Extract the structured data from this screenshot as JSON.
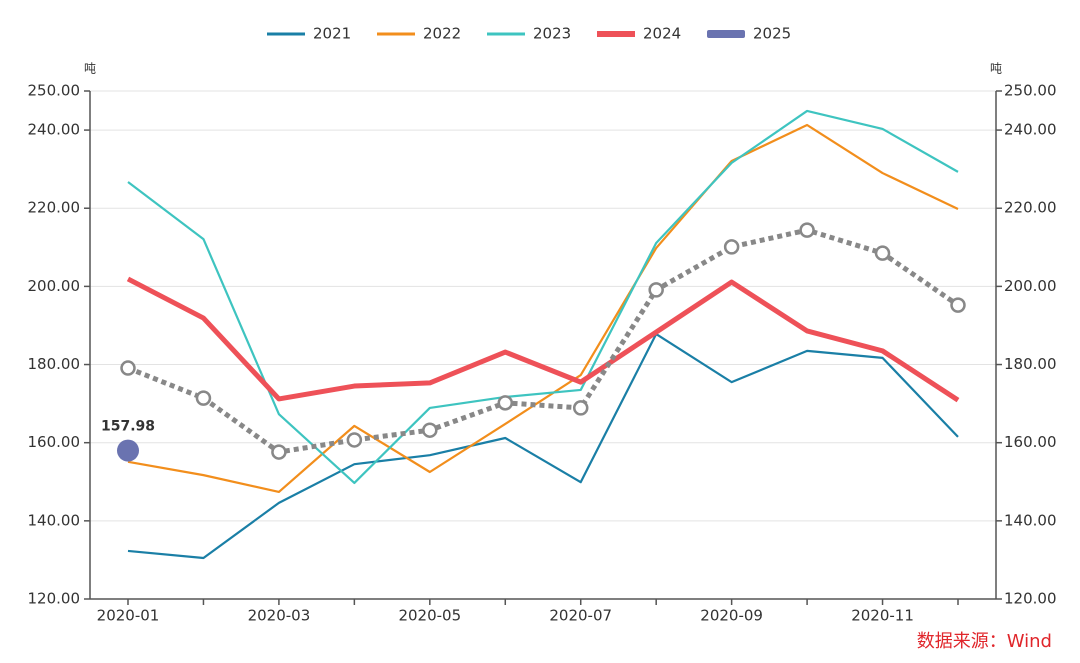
{
  "chart_data": {
    "type": "line",
    "categories": [
      "2020-01",
      null,
      "2020-03",
      null,
      "2020-05",
      null,
      "2020-07",
      null,
      "2020-09",
      null,
      "2020-11",
      null
    ],
    "series": [
      {
        "name": "2021",
        "color": "#1a7fa6",
        "values": [
          132.3,
          130.5,
          144.6,
          154.5,
          156.8,
          161.2,
          149.9,
          187.8,
          175.5,
          183.5,
          181.7,
          161.5
        ]
      },
      {
        "name": "2022",
        "color": "#f28e1c",
        "values": [
          155.1,
          151.7,
          147.4,
          164.3,
          152.5,
          164.8,
          177.3,
          209.8,
          232.1,
          241.3,
          229.0,
          219.8
        ]
      },
      {
        "name": "2023",
        "color": "#3ec4c0",
        "values": [
          226.7,
          212.1,
          167.3,
          149.7,
          168.9,
          171.7,
          173.5,
          211.1,
          231.6,
          244.9,
          240.3,
          229.3
        ]
      },
      {
        "name": "2024",
        "color": "#ee5158",
        "values": [
          201.9,
          191.9,
          171.2,
          174.5,
          175.3,
          183.2,
          175.5,
          188.3,
          201.1,
          188.6,
          183.5,
          170.9
        ]
      },
      {
        "name": "2025",
        "color": "#6a73b0",
        "values": [
          157.98,
          null,
          null,
          null,
          null,
          null,
          null,
          null,
          null,
          null,
          null,
          null
        ]
      },
      {
        "color": "#888888",
        "style": "dotted",
        "values": [
          179.1,
          171.4,
          157.6,
          160.7,
          163.2,
          170.2,
          168.9,
          199.1,
          210.1,
          214.4,
          208.5,
          195.2
        ]
      }
    ],
    "ylabel": "吨",
    "y2label": "吨",
    "ylim": [
      120,
      250
    ],
    "yticks": [
      {
        "value": 120,
        "label": "120.00"
      },
      {
        "value": 140,
        "label": "140.00"
      },
      {
        "value": 160,
        "label": "160.00"
      },
      {
        "value": 180,
        "label": "180.00"
      },
      {
        "value": 200,
        "label": "200.00"
      },
      {
        "value": 220,
        "label": "220.00"
      },
      {
        "value": 240,
        "label": "240.00"
      },
      {
        "value": 250,
        "label": "250.00"
      }
    ],
    "y2lim": [
      120,
      250
    ],
    "y2ticks": [
      {
        "value": 120,
        "label": "120.00"
      },
      {
        "value": 140,
        "label": "140.00"
      },
      {
        "value": 160,
        "label": "160.00"
      },
      {
        "value": 180,
        "label": "180.00"
      },
      {
        "value": 200,
        "label": "200.00"
      },
      {
        "value": 220,
        "label": "220.00"
      },
      {
        "value": 240,
        "label": "240.00"
      },
      {
        "value": 250,
        "label": "250.00"
      }
    ],
    "grid": true,
    "legend": "top",
    "annotation": "数据来源：Wind"
  }
}
